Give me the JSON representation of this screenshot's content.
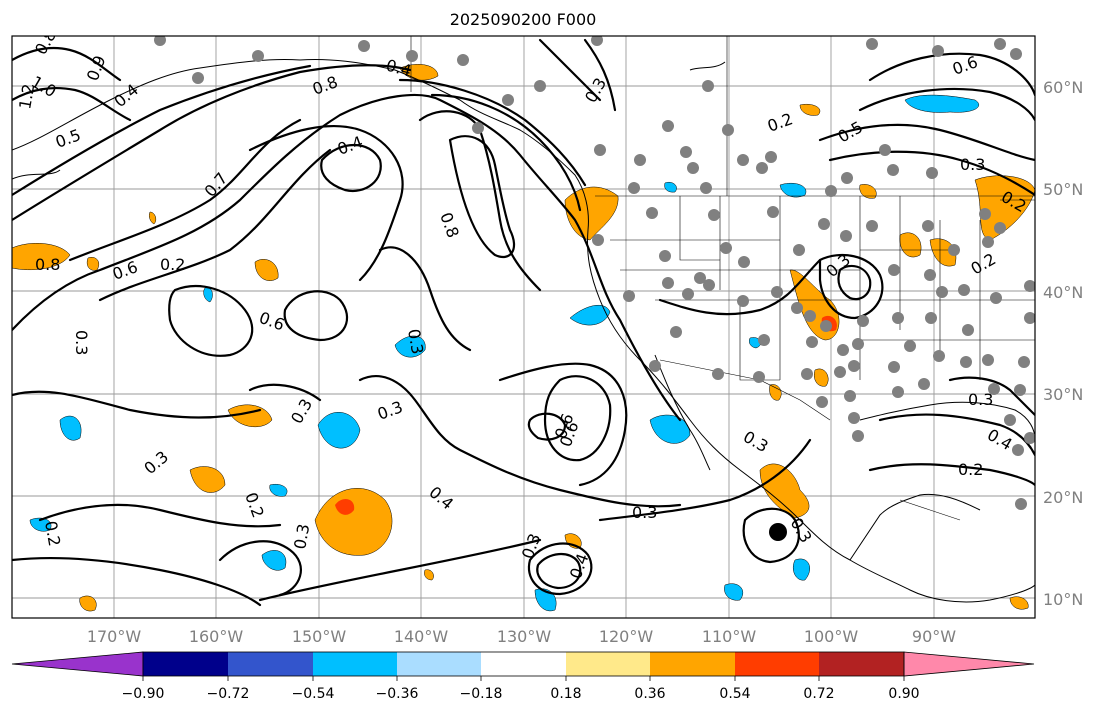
{
  "title": "2025090200 F000",
  "map": {
    "lat_labels": [
      "60°N",
      "50°N",
      "40°N",
      "30°N",
      "20°N",
      "10°N"
    ],
    "lon_labels": [
      "170°W",
      "160°W",
      "150°W",
      "140°W",
      "130°W",
      "120°W",
      "110°W",
      "100°W",
      "90°W"
    ],
    "contour_labels": [
      "0.8",
      "1.0",
      "1.2",
      "0.4",
      "0.5",
      "0.7",
      "0.9",
      "0.6",
      "0.3",
      "0.4",
      "0.8",
      "0.8",
      "0.8",
      "0.4",
      "0.6",
      "0.6",
      "0.3",
      "0.3",
      "0.3",
      "0.3",
      "0.2",
      "0.3",
      "0.4",
      "0.6",
      "0.3",
      "0.3",
      "0.4",
      "0.2",
      "0.3",
      "0.2",
      "0.3",
      "0.6",
      "0.5",
      "0.3",
      "0.2",
      "0.3",
      "0.2",
      "0.3",
      "0.4",
      "0.2",
      "0.2",
      "0.3"
    ],
    "colors": {
      "contour": "#000000",
      "station_dot": "#808080",
      "grid": "#9a9a9a",
      "negative_fill": "#00bfff",
      "positive_fill": "#ffa500"
    }
  },
  "colorbar": {
    "ticks": [
      "−0.90",
      "−0.72",
      "−0.54",
      "−0.36",
      "−0.18",
      "0.18",
      "0.36",
      "0.54",
      "0.72",
      "0.90"
    ],
    "colors": [
      "#9933cc",
      "#00008b",
      "#3355cc",
      "#00bfff",
      "#aaddff",
      "#ffffff",
      "#ffe98a",
      "#ffa500",
      "#ff3d00",
      "#b22222",
      "#ff88aa"
    ]
  }
}
